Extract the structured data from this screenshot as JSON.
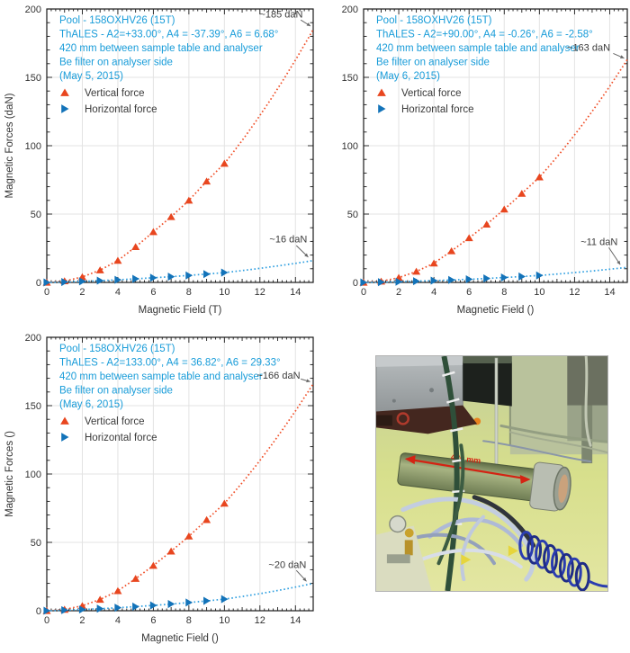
{
  "colors": {
    "header_text": "#189cd9",
    "vertical_force": "#e8461f",
    "vertical_line": "#f04f28",
    "horizontal_force": "#1373b9",
    "horizontal_line": "#2f9fe0",
    "grid": "#e3e3e3",
    "axis": "#1a1a1a",
    "tick_label": "#333333",
    "annotation_text": "#3a3a3a",
    "annotation_arrow": "#666666",
    "photo_arrow": "#d42313"
  },
  "legend": {
    "vertical_label": "Vertical force",
    "horizontal_label": "Horizontal force"
  },
  "chart_data": [
    {
      "id": "top-left",
      "type": "scatter",
      "header_lines": [
        "Pool - 158OXHV26 (15T)",
        "ThALES - A2=+33.00°, A4 = -37.39°, A6 = 6.68°",
        "420 mm between sample table and analyser",
        "Be filter on analyser side",
        "(May 5, 2015)"
      ],
      "xlabel": "Magnetic Field (T)",
      "ylabel": "Magnetic Forces (daN)",
      "xlim": [
        0,
        15
      ],
      "ylim": [
        0,
        200
      ],
      "xticks": [
        0,
        2,
        4,
        6,
        8,
        10,
        12,
        14
      ],
      "yticks": [
        0,
        50,
        100,
        150,
        200
      ],
      "grid": true,
      "legend_position": "upper-left",
      "x": [
        0,
        1,
        2,
        3,
        4,
        5,
        6,
        7,
        8,
        9,
        10
      ],
      "series": [
        {
          "name": "Vertical force",
          "marker": "triangle-up",
          "values": [
            0,
            1,
            4,
            9,
            16,
            26,
            37,
            48,
            60,
            74,
            87
          ],
          "extrapolated_value_at_15T": 185
        },
        {
          "name": "Horizontal force",
          "marker": "triangle-right",
          "values": [
            0,
            0.3,
            0.8,
            1.3,
            1.9,
            2.6,
            3.4,
            4.2,
            5.1,
            6.1,
            7.2
          ],
          "extrapolated_value_at_15T": 16
        }
      ],
      "annotations": [
        {
          "text": "~185 daN",
          "text_x": 13.2,
          "text_y": 196.5,
          "arrow_from_x": 14.3,
          "arrow_from_y": 192,
          "arrow_to_x": 14.85,
          "arrow_to_y": 187.5
        },
        {
          "text": "~16 daN",
          "text_x": 13.6,
          "text_y": 32,
          "arrow_from_x": 14.05,
          "arrow_from_y": 27,
          "arrow_to_x": 14.72,
          "arrow_to_y": 18.5
        }
      ]
    },
    {
      "id": "top-right",
      "type": "scatter",
      "header_lines": [
        "Pool - 158OXHV26 (15T)",
        "ThALES - A2=+90.00°, A4 = -0.26°, A6 = -2.58°",
        "420 mm between sample table and analyser",
        "Be filter on analyser side",
        "(May 6, 2015)"
      ],
      "xlabel": "Magnetic Field ()",
      "ylabel": "",
      "xlim": [
        0,
        15
      ],
      "ylim": [
        0,
        200
      ],
      "xticks": [
        0,
        2,
        4,
        6,
        8,
        10,
        12,
        14
      ],
      "yticks": [
        0,
        50,
        100,
        150,
        200
      ],
      "grid": true,
      "legend_position": "upper-left",
      "x": [
        0,
        1,
        2,
        3,
        4,
        5,
        6,
        7,
        8,
        9,
        10
      ],
      "series": [
        {
          "name": "Vertical force",
          "marker": "triangle-up",
          "values": [
            0,
            0.8,
            3.5,
            8,
            14,
            23,
            32.5,
            42.5,
            53.5,
            65,
            77
          ],
          "extrapolated_value_at_15T": 163
        },
        {
          "name": "Horizontal force",
          "marker": "triangle-right",
          "values": [
            0,
            0.2,
            0.5,
            0.9,
            1.3,
            1.8,
            2.3,
            2.9,
            3.6,
            4.3,
            5.1
          ],
          "extrapolated_value_at_15T": 11
        }
      ],
      "annotations": [
        {
          "text": "~163 daN",
          "text_x": 12.8,
          "text_y": 172,
          "arrow_from_x": 14.2,
          "arrow_from_y": 167.5,
          "arrow_to_x": 14.82,
          "arrow_to_y": 164
        },
        {
          "text": "~11 daN",
          "text_x": 13.4,
          "text_y": 30,
          "arrow_from_x": 13.95,
          "arrow_from_y": 25.5,
          "arrow_to_x": 14.6,
          "arrow_to_y": 13
        }
      ]
    },
    {
      "id": "bottom-left",
      "type": "scatter",
      "header_lines": [
        "Pool - 158OXHV26 (15T)",
        "ThALES - A2=133.00°, A4 = 36.82°, A6 = 29.33°",
        "420 mm between sample table and analyser",
        "Be filter on analyser side",
        "(May 6, 2015)"
      ],
      "xlabel": "Magnetic Field ()",
      "ylabel": "Magnetic Forces ()",
      "xlim": [
        0,
        15
      ],
      "ylim": [
        0,
        200
      ],
      "xticks": [
        0,
        2,
        4,
        6,
        8,
        10,
        12,
        14
      ],
      "yticks": [
        0,
        50,
        100,
        150,
        200
      ],
      "grid": true,
      "legend_position": "upper-left",
      "x": [
        0,
        1,
        2,
        3,
        4,
        5,
        6,
        7,
        8,
        9,
        10
      ],
      "series": [
        {
          "name": "Vertical force",
          "marker": "triangle-up",
          "values": [
            0,
            0.9,
            3.6,
            8.2,
            14.5,
            23.5,
            33,
            43.5,
            54.5,
            66.5,
            78.5
          ],
          "extrapolated_value_at_15T": 166
        },
        {
          "name": "Horizontal force",
          "marker": "triangle-right",
          "values": [
            0,
            0.4,
            0.9,
            1.5,
            2.2,
            3.0,
            3.9,
            4.9,
            6.0,
            7.2,
            8.5
          ],
          "extrapolated_value_at_15T": 20
        }
      ],
      "annotations": [
        {
          "text": "~166 daN",
          "text_x": 13.05,
          "text_y": 172.5,
          "arrow_from_x": 14.3,
          "arrow_from_y": 169.5,
          "arrow_to_x": 14.83,
          "arrow_to_y": 167.5
        },
        {
          "text": "~20 daN",
          "text_x": 13.55,
          "text_y": 34,
          "arrow_from_x": 14.05,
          "arrow_from_y": 29.5,
          "arrow_to_x": 14.62,
          "arrow_to_y": 21.5
        }
      ]
    }
  ],
  "photo": {
    "description": "instrument setup photograph",
    "arrow_label": "420 mm"
  }
}
